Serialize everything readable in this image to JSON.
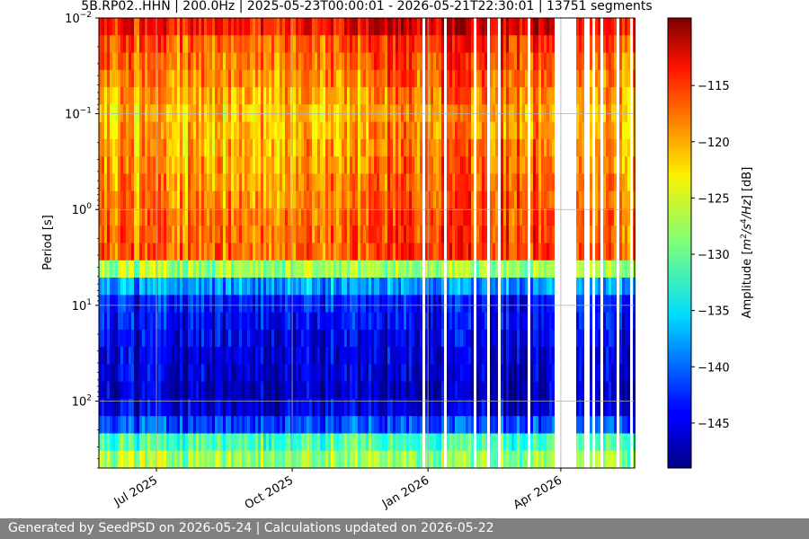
{
  "chart_data": {
    "type": "heatmap",
    "title": "5B.RP02..HHN | 200.0Hz | 2025-05-23T00:00:01 - 2026-05-21T22:30:01 | 13751 segments",
    "xlabel": "",
    "ylabel": "Period [s]",
    "x_range": [
      "2025-05-23",
      "2026-05-21"
    ],
    "x_ticks": [
      {
        "date": "2025-07-01",
        "label": "Jul 2025"
      },
      {
        "date": "2025-10-01",
        "label": "Oct 2025"
      },
      {
        "date": "2026-01-01",
        "label": "Jan 2026"
      },
      {
        "date": "2026-04-01",
        "label": "Apr 2026"
      }
    ],
    "y_scale": "log",
    "y_inverted": true,
    "y_range": [
      0.01,
      500
    ],
    "y_ticks": [
      {
        "value": 0.01,
        "base": "10",
        "exp": "−2"
      },
      {
        "value": 0.1,
        "base": "10",
        "exp": "−1"
      },
      {
        "value": 1,
        "base": "10",
        "exp": "0"
      },
      {
        "value": 10,
        "base": "10",
        "exp": "1"
      },
      {
        "value": 100,
        "base": "10",
        "exp": "2"
      }
    ],
    "grid": true,
    "colormap": "jet",
    "colorbar": {
      "label_prefix": "Amplitude [",
      "label_m": "m",
      "label_s": "/s",
      "label_hz": "/Hz",
      "label_sup2": "2",
      "label_sup4": "4",
      "label_suffix": "] [dB]",
      "range": [
        -149,
        -109
      ],
      "ticks": [
        {
          "value": -115,
          "label": "−115"
        },
        {
          "value": -120,
          "label": "−120"
        },
        {
          "value": -125,
          "label": "−125"
        },
        {
          "value": -130,
          "label": "−130"
        },
        {
          "value": -135,
          "label": "−135"
        },
        {
          "value": -140,
          "label": "−140"
        },
        {
          "value": -145,
          "label": "−145"
        }
      ]
    },
    "amplitude_profile_db": [
      {
        "period": 0.01,
        "db": -112
      },
      {
        "period": 0.015,
        "db": -117
      },
      {
        "period": 0.1,
        "db": -122
      },
      {
        "period": 1,
        "db": -119
      },
      {
        "period": 3,
        "db": -118
      },
      {
        "period": 5,
        "db": -133
      },
      {
        "period": 8,
        "db": -143
      },
      {
        "period": 100,
        "db": -147
      },
      {
        "period": 200,
        "db": -140
      },
      {
        "period": 300,
        "db": -128
      }
    ],
    "data_gaps": [
      [
        "2026-03-26",
        "2026-04-06"
      ]
    ]
  },
  "footer": {
    "text": "Generated by SeedPSD on 2026-05-24 | Calculations updated on 2026-05-22"
  }
}
